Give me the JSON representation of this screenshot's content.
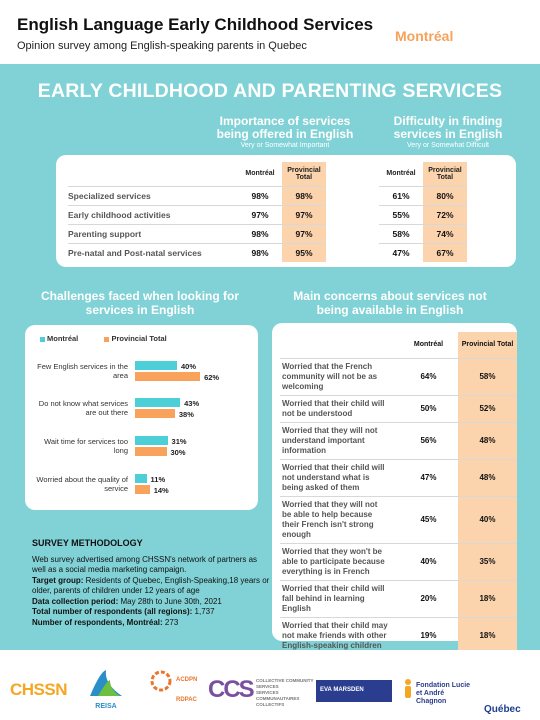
{
  "header": {
    "title": "English Language Early Childhood Services",
    "subtitle": "Opinion survey among English-speaking parents in Quebec",
    "region": "Montréal"
  },
  "main_title": "EARLY CHILDHOOD AND PARENTING SERVICES",
  "importance": {
    "title": "Importance of services being offered in English",
    "note": "Very or Somewhat Important"
  },
  "difficulty": {
    "title": "Difficulty in finding services in English",
    "note": "Very or Somewhat Difficult"
  },
  "table1": {
    "col_montreal": "Montréal",
    "col_provincial": "Provincial Total",
    "rows": [
      {
        "label": "Specialized services",
        "imp_m": "98%",
        "imp_p": "98%",
        "dif_m": "61%",
        "dif_p": "80%"
      },
      {
        "label": "Early childhood activities",
        "imp_m": "97%",
        "imp_p": "97%",
        "dif_m": "55%",
        "dif_p": "72%"
      },
      {
        "label": "Parenting support",
        "imp_m": "98%",
        "imp_p": "97%",
        "dif_m": "58%",
        "dif_p": "74%"
      },
      {
        "label": "Pre-natal and Post-natal services",
        "imp_m": "98%",
        "imp_p": "95%",
        "dif_m": "47%",
        "dif_p": "67%"
      }
    ]
  },
  "chart_data": {
    "type": "bar",
    "orientation": "horizontal",
    "title": "Challenges faced when looking for services in English",
    "categories": [
      "Few English services in the area",
      "Do not know what services are out there",
      "Wait time for services too long",
      "Worried about the quality of service"
    ],
    "series": [
      {
        "name": "Montréal",
        "values": [
          40,
          43,
          31,
          11
        ],
        "color": "#4ccfd6"
      },
      {
        "name": "Provincial Total",
        "values": [
          62,
          38,
          30,
          14
        ],
        "color": "#f8a25b"
      }
    ],
    "unit": "%",
    "grid": false,
    "legend": "top-left"
  },
  "concerns": {
    "title": "Main concerns about services not being available in English",
    "col_montreal": "Montréal",
    "col_provincial": "Provincial Total",
    "rows": [
      {
        "label": "Worried that the French community will not be as welcoming",
        "m": "64%",
        "p": "58%"
      },
      {
        "label": "Worried that their child will not be understood",
        "m": "50%",
        "p": "52%"
      },
      {
        "label": "Worried that they will not understand important information",
        "m": "56%",
        "p": "48%"
      },
      {
        "label": "Worried that their child will not understand what is being asked of them",
        "m": "47%",
        "p": "48%"
      },
      {
        "label": "Worried that they will not be able to help because their French isn't strong enough",
        "m": "45%",
        "p": "40%"
      },
      {
        "label": "Worried that they won't be able to participate because everything is in French",
        "m": "40%",
        "p": "35%"
      },
      {
        "label": "Worried that their child will fall behind in learning English",
        "m": "20%",
        "p": "18%"
      },
      {
        "label": "Worried that their child may not make friends with other English-speaking children",
        "m": "19%",
        "p": "18%"
      }
    ]
  },
  "methodology": {
    "heading": "SURVEY METHODOLOGY",
    "intro": "Web survey advertised among CHSSN's network of partners as well as a social media marketing campaign.",
    "target_label": "Target group:",
    "target_text": "Residents of Quebec, English-Speaking,18 years or older, parents of children under 12 years of age",
    "period_label": "Data collection period:",
    "period_text": "May 28th to June 30th, 2021",
    "total_label": "Total number of respondents (all regions):",
    "total_text": "1,737",
    "montreal_label": "Number of respondents, Montréal:",
    "montreal_text": "273"
  },
  "footer": {
    "logos": [
      "CHSSN",
      "REISA",
      "ACDPN",
      "RDPAC",
      "CCS",
      "COLLECTIVE COMMUNITY SERVICES",
      "SERVICES COMMUNAUTAIRES COLLECTIFS",
      "EVA MARSDEN",
      "Fondation Lucie et André Chagnon",
      "Québec"
    ]
  }
}
